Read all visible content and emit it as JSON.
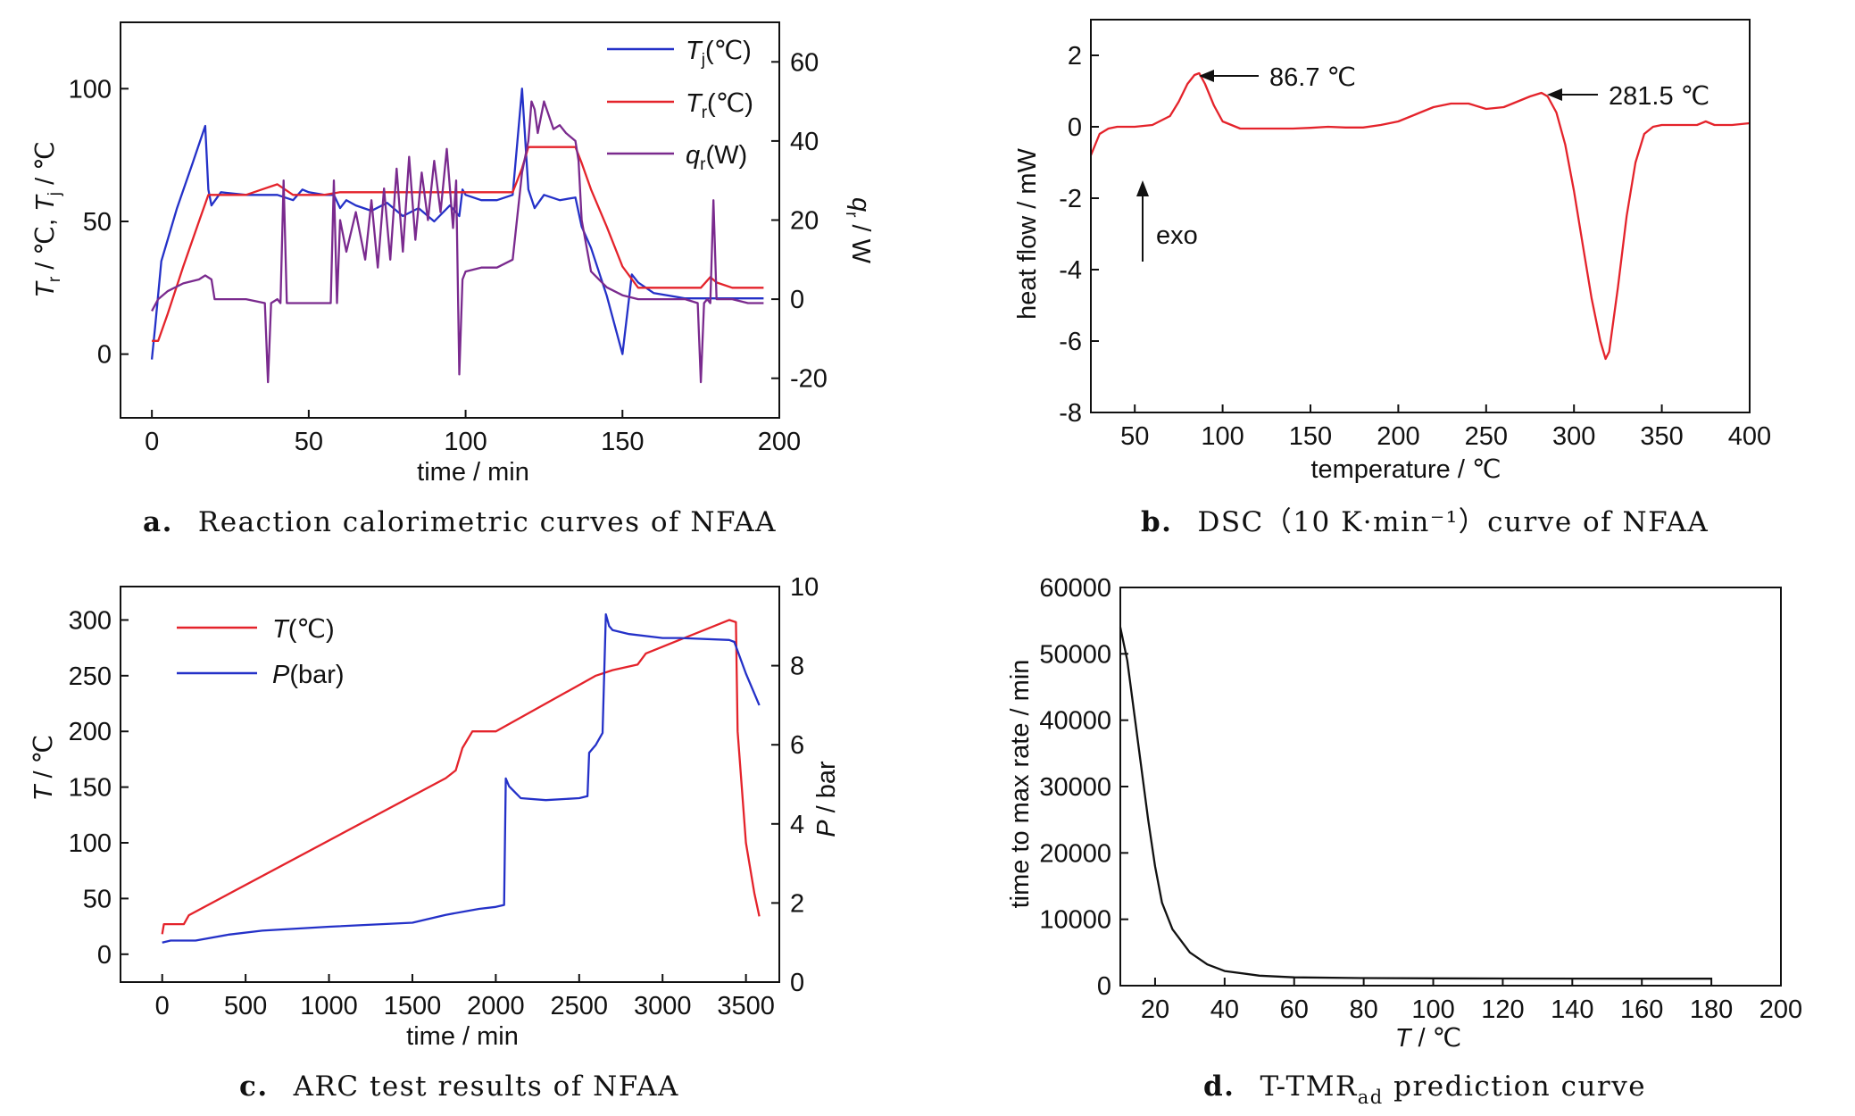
{
  "colors": {
    "red": "#e4232b",
    "blue": "#2431c8",
    "purple": "#7a2a8e",
    "black": "#111111"
  },
  "chart_data": [
    {
      "id": "a",
      "type": "line",
      "caption": {
        "label": "a.",
        "text": "Reaction calorimetric curves of NFAA"
      },
      "xlabel": "time / min",
      "ylabel_left": "T_r / ℃, T_j / ℃",
      "ylabel_right": "q_r / W",
      "xlim": [
        -10,
        200
      ],
      "ylim_left": [
        -24,
        125
      ],
      "ylim_right": [
        -30,
        70
      ],
      "xticks": [
        0,
        50,
        100,
        150,
        200
      ],
      "yticks_left": [
        0,
        50,
        100
      ],
      "yticks_right": [
        -20,
        0,
        20,
        40,
        60
      ],
      "legend": {
        "placement": "top-right",
        "entries": [
          {
            "main": "T",
            "sub": "j",
            "unit": "(℃)",
            "color": "blue"
          },
          {
            "main": "T",
            "sub": "r",
            "unit": "(℃)",
            "color": "red"
          },
          {
            "main": "q",
            "sub": "r",
            "unit": "(W)",
            "color": "purple"
          }
        ]
      },
      "series": [
        {
          "name": "T_j(℃)",
          "axis": "left",
          "color": "blue",
          "x": [
            0,
            1,
            3,
            8,
            13,
            17,
            18,
            19,
            22,
            30,
            40,
            45,
            48,
            50,
            55,
            58,
            60,
            62,
            65,
            70,
            75,
            80,
            85,
            90,
            95,
            98,
            99,
            100,
            105,
            110,
            115,
            118,
            120,
            122,
            125,
            130,
            135,
            137,
            140,
            145,
            150,
            152,
            153,
            155,
            160,
            170,
            180,
            190,
            195
          ],
          "y": [
            -2,
            10,
            35,
            55,
            72,
            86,
            62,
            56,
            61,
            60,
            60,
            58,
            62,
            61,
            60,
            60,
            55,
            58,
            56,
            54,
            57,
            52,
            55,
            50,
            56,
            52,
            62,
            60,
            58,
            58,
            60,
            100,
            62,
            55,
            60,
            58,
            59,
            48,
            40,
            22,
            0,
            20,
            30,
            27,
            23,
            21,
            21,
            21,
            21
          ]
        },
        {
          "name": "T_r(℃)",
          "axis": "left",
          "color": "red",
          "x": [
            0,
            2,
            5,
            10,
            15,
            18,
            20,
            30,
            35,
            40,
            45,
            50,
            55,
            60,
            70,
            80,
            90,
            100,
            110,
            115,
            118,
            120,
            125,
            135,
            137,
            140,
            145,
            150,
            155,
            160,
            170,
            175,
            178,
            180,
            185,
            195
          ],
          "y": [
            5,
            5,
            15,
            33,
            50,
            60,
            60,
            60,
            62,
            64,
            60,
            60,
            60,
            61,
            61,
            61,
            61,
            61,
            61,
            61,
            70,
            78,
            78,
            78,
            72,
            62,
            48,
            33,
            25,
            25,
            25,
            25,
            29,
            27,
            25,
            25
          ]
        },
        {
          "name": "q_r(W)",
          "axis": "right",
          "color": "purple",
          "x": [
            0,
            2,
            5,
            10,
            15,
            17,
            19,
            20,
            30,
            36,
            37,
            38,
            40,
            41,
            42,
            43,
            45,
            50,
            55,
            57,
            58,
            59,
            60,
            62,
            65,
            68,
            70,
            72,
            74,
            76,
            78,
            80,
            82,
            84,
            86,
            88,
            90,
            92,
            94,
            96,
            97,
            98,
            99,
            100,
            105,
            110,
            115,
            118,
            120,
            121,
            122,
            123,
            125,
            128,
            130,
            132,
            135,
            136,
            137,
            140,
            145,
            150,
            155,
            160,
            170,
            174,
            175,
            176,
            177,
            178,
            179,
            180,
            185,
            190,
            195
          ],
          "y": [
            -3,
            0,
            2,
            4,
            5,
            6,
            5,
            0,
            0,
            -1,
            -21,
            -1,
            0,
            -1,
            30,
            -1,
            -1,
            -1,
            -1,
            -1,
            30,
            -1,
            20,
            12,
            22,
            10,
            25,
            8,
            28,
            10,
            33,
            12,
            36,
            15,
            32,
            20,
            35,
            22,
            38,
            18,
            30,
            -19,
            5,
            7,
            8,
            8,
            10,
            32,
            40,
            50,
            48,
            42,
            50,
            43,
            44,
            42,
            40,
            35,
            20,
            7,
            3,
            1,
            0,
            0,
            0,
            -1,
            -21,
            -1,
            0,
            -1,
            25,
            0,
            0,
            -1,
            -1
          ]
        }
      ]
    },
    {
      "id": "b",
      "type": "line",
      "caption": {
        "label": "b.",
        "text": "DSC（10 K·min⁻¹）curve of NFAA"
      },
      "xlabel": "temperature / ℃",
      "ylabel": "heat flow / mW",
      "xlim": [
        25,
        400
      ],
      "ylim": [
        -8,
        3
      ],
      "xticks": [
        50,
        100,
        150,
        200,
        250,
        300,
        350,
        400
      ],
      "yticks": [
        -8,
        -6,
        -4,
        -2,
        0,
        2
      ],
      "annotations": [
        {
          "text": "86.7 ℃",
          "x": 86.7,
          "y": 1.5
        },
        {
          "text": "281.5 ℃",
          "x": 281.5,
          "y": 0.95
        },
        {
          "text": "exo",
          "x": 27,
          "y": -3
        }
      ],
      "series": [
        {
          "name": "DSC",
          "color": "red",
          "x": [
            25,
            30,
            35,
            40,
            50,
            60,
            70,
            75,
            80,
            84,
            86.7,
            90,
            95,
            100,
            110,
            120,
            130,
            140,
            150,
            160,
            170,
            180,
            190,
            200,
            210,
            220,
            230,
            240,
            250,
            260,
            270,
            275,
            281.5,
            285,
            290,
            295,
            300,
            305,
            310,
            315,
            318,
            320,
            325,
            330,
            335,
            340,
            345,
            350,
            360,
            370,
            375,
            380,
            390,
            400
          ],
          "y": [
            -0.8,
            -0.2,
            -0.05,
            0,
            0,
            0.05,
            0.3,
            0.7,
            1.2,
            1.45,
            1.5,
            1.2,
            0.6,
            0.15,
            -0.05,
            -0.05,
            -0.05,
            -0.05,
            -0.03,
            0,
            -0.02,
            -0.02,
            0.05,
            0.15,
            0.35,
            0.55,
            0.65,
            0.65,
            0.5,
            0.55,
            0.75,
            0.85,
            0.95,
            0.85,
            0.4,
            -0.5,
            -1.8,
            -3.3,
            -4.8,
            -6,
            -6.5,
            -6.3,
            -4.5,
            -2.5,
            -1,
            -0.2,
            0,
            0.05,
            0.05,
            0.05,
            0.15,
            0.05,
            0.05,
            0.1
          ]
        }
      ]
    },
    {
      "id": "c",
      "type": "line",
      "caption": {
        "label": "c.",
        "text": "ARC test results of NFAA"
      },
      "xlabel": "time / min",
      "ylabel_left": "T / ℃",
      "ylabel_right": "P / bar",
      "xlim": [
        -250,
        3700
      ],
      "ylim_left": [
        -25,
        330
      ],
      "ylim_right": [
        0,
        10
      ],
      "xticks": [
        0,
        500,
        1000,
        1500,
        2000,
        2500,
        3000,
        3500
      ],
      "yticks_left": [
        0,
        50,
        100,
        150,
        200,
        250,
        300
      ],
      "yticks_right": [
        0,
        2,
        4,
        6,
        8,
        10
      ],
      "legend": {
        "placement": "top-left",
        "entries": [
          {
            "main": "T",
            "sub": "",
            "unit": "(℃)",
            "color": "red"
          },
          {
            "main": "P",
            "sub": "",
            "unit": "(bar)",
            "color": "blue"
          }
        ]
      },
      "series": [
        {
          "name": "T(℃)",
          "axis": "left",
          "color": "red",
          "x": [
            0,
            10,
            130,
            160,
            1700,
            1760,
            1800,
            1860,
            2000,
            2600,
            2700,
            2850,
            2900,
            3400,
            3440,
            3450,
            3500,
            3550,
            3580
          ],
          "y": [
            18,
            27,
            27,
            35,
            158,
            165,
            185,
            200,
            200,
            250,
            255,
            260,
            270,
            300,
            298,
            200,
            100,
            55,
            34
          ]
        },
        {
          "name": "P(bar)",
          "axis": "right",
          "color": "blue",
          "x": [
            0,
            50,
            200,
            400,
            600,
            1000,
            1500,
            1700,
            1900,
            2000,
            2050,
            2060,
            2080,
            2150,
            2300,
            2500,
            2550,
            2560,
            2600,
            2640,
            2660,
            2680,
            2700,
            2800,
            3000,
            3100,
            3400,
            3430,
            3500,
            3580
          ],
          "y": [
            1,
            1.05,
            1.05,
            1.2,
            1.3,
            1.4,
            1.5,
            1.7,
            1.85,
            1.9,
            1.95,
            5.15,
            4.95,
            4.65,
            4.6,
            4.65,
            4.7,
            5.8,
            6,
            6.3,
            9.3,
            9,
            8.9,
            8.8,
            8.7,
            8.7,
            8.65,
            8.6,
            7.8,
            7
          ]
        }
      ]
    },
    {
      "id": "d",
      "type": "line",
      "caption": {
        "label": "d.",
        "text": "T-TMR",
        "sub": "ad",
        "suffix": " prediction curve"
      },
      "xlabel": "T / ℃",
      "ylabel": "time to max rate / min",
      "xlim": [
        10,
        200
      ],
      "ylim": [
        0,
        60000
      ],
      "xticks": [
        20,
        40,
        60,
        80,
        100,
        120,
        140,
        160,
        180,
        200
      ],
      "yticks": [
        0,
        10000,
        20000,
        30000,
        40000,
        50000,
        60000
      ],
      "series": [
        {
          "name": "TMRad",
          "color": "black",
          "x": [
            10,
            12,
            14,
            16,
            18,
            20,
            22,
            25,
            30,
            35,
            40,
            50,
            60,
            80,
            100,
            120,
            140,
            160,
            180
          ],
          "y": [
            54000,
            49000,
            41000,
            33000,
            25000,
            18000,
            12500,
            8500,
            5000,
            3200,
            2200,
            1500,
            1250,
            1150,
            1100,
            1080,
            1060,
            1050,
            1050
          ]
        }
      ]
    }
  ]
}
